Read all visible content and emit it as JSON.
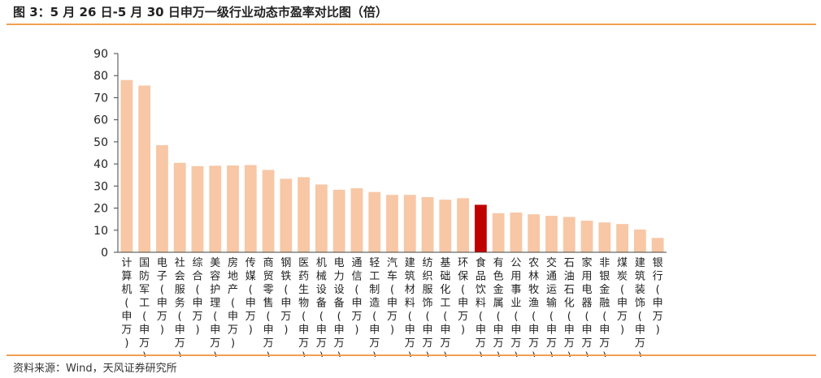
{
  "header": {
    "title": "图 3：5 月 26 日-5 月 30 日申万一级行业动态市盈率对比图（倍）"
  },
  "footer": {
    "source": "资料来源：Wind，天风证券研究所"
  },
  "colors": {
    "bar": "#f7c7a6",
    "highlight": "#c00000",
    "rule": "#f0a050"
  },
  "chart_data": {
    "type": "bar",
    "title": "",
    "xlabel": "",
    "ylabel": "",
    "ylim": [
      0,
      90
    ],
    "yticks": [
      0,
      10,
      20,
      30,
      40,
      50,
      60,
      70,
      80,
      90
    ],
    "grid": false,
    "highlight_category": "食品饮料(申万)",
    "categories": [
      "计算机(申万)",
      "国防军工(申万)",
      "电子(申万)",
      "社会服务(申万)",
      "综合(申万)",
      "美容护理(申万)",
      "房地产(申万)",
      "传媒(申万)",
      "商贸零售(申万)",
      "钢铁(申万)",
      "医药生物(申万)",
      "机械设备(申万)",
      "电力设备(申万)",
      "通信(申万)",
      "轻工制造(申万)",
      "汽车(申万)",
      "建筑材料(申万)",
      "纺织服饰(申万)",
      "基础化工(申万)",
      "环保(申万)",
      "食品饮料(申万)",
      "有色金属(申万)",
      "公用事业(申万)",
      "农林牧渔(申万)",
      "交通运输(申万)",
      "石油石化(申万)",
      "家用电器(申万)",
      "非银金融(申万)",
      "煤炭(申万)",
      "建筑装饰(申万)",
      "银行(申万)"
    ],
    "values": [
      78,
      75.5,
      48.5,
      40.5,
      39,
      39.2,
      39.3,
      39.5,
      37.3,
      33.3,
      34,
      30.7,
      28.3,
      29,
      27.3,
      26,
      26,
      25,
      23.8,
      24.5,
      21.5,
      17.7,
      18,
      17.2,
      16.5,
      16,
      14.3,
      13.5,
      12.8,
      10.3,
      6.5
    ]
  }
}
